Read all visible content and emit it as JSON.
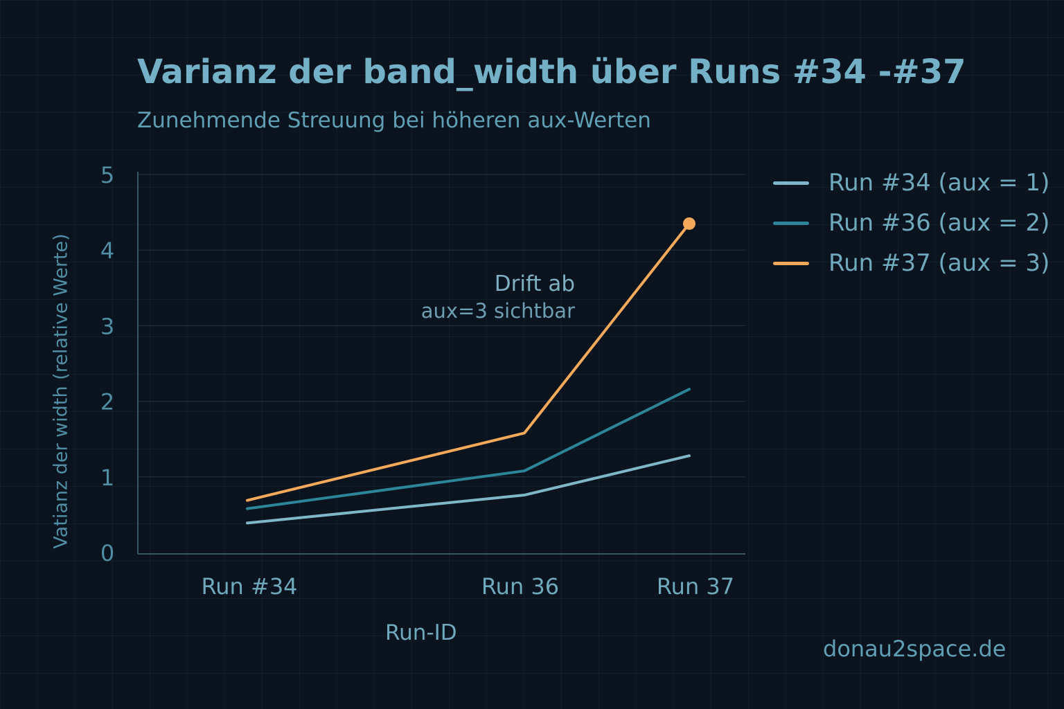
{
  "chart_data": {
    "type": "line",
    "title": "Varianz der band_width über Runs #34 -#37",
    "subtitle": "Zunehmende Streuung bei höheren aux-Werten",
    "xlabel": "Run-ID",
    "ylabel": "Vatianz der width (relative Werte)",
    "categories": [
      "Run #34",
      "Run 36",
      "Run 37"
    ],
    "ylim": [
      0,
      5
    ],
    "yticks": [
      "0",
      "1",
      "2",
      "3",
      "4",
      "5"
    ],
    "grid": true,
    "legend_position": "right",
    "series": [
      {
        "name": "Run #34 (aux = 1)",
        "color": "#7fb6c8",
        "values": [
          0.39,
          0.76,
          1.28
        ]
      },
      {
        "name": "Run #36 (aux = 2)",
        "color": "#2c8599",
        "values": [
          0.58,
          1.08,
          2.16
        ]
      },
      {
        "name": "Run #37 (aux = 3)",
        "color": "#f4a95b",
        "values": [
          0.69,
          1.58,
          4.35
        ]
      }
    ],
    "annotation": {
      "line1": "Drift ab",
      "line2": "aux=3 sichtbar"
    }
  },
  "watermark": "donau2space.de"
}
